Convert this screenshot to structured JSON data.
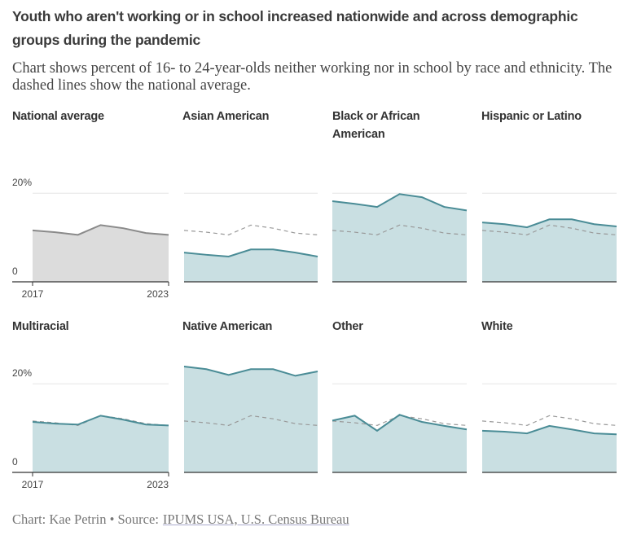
{
  "header": {
    "title": "Youth who aren't working or in school increased nationwide and across demographic groups during the pandemic",
    "subtitle": "Chart shows percent of 16- to 24-year-olds neither working nor in school by race and ethnicity. The dashed lines show the national average."
  },
  "chart_data": [
    {
      "type": "area",
      "title": "National average",
      "x": [
        2017,
        2018,
        2019,
        2020,
        2021,
        2022,
        2023
      ],
      "values": [
        11.6,
        11.2,
        10.6,
        12.8,
        12.1,
        11.0,
        10.6
      ],
      "color": "#8a8a8a",
      "fill": "#dcdcdc",
      "xlim": [
        2017,
        2023
      ],
      "xticks": [
        2017,
        2023
      ],
      "ylim": [
        0,
        25
      ],
      "yticks": [
        0,
        {
          "value": 20,
          "label": "20%"
        }
      ]
    },
    {
      "type": "area",
      "title": "Asian American",
      "x": [
        2017,
        2018,
        2019,
        2020,
        2021,
        2022,
        2023
      ],
      "values": [
        6.6,
        6.1,
        5.7,
        7.3,
        7.3,
        6.6,
        5.7
      ],
      "color": "#4a8c96",
      "fill": "#c9dfe2",
      "xlim": [
        2017,
        2023
      ],
      "ylim": [
        0,
        25
      ]
    },
    {
      "type": "area",
      "title": "Black or African American",
      "x": [
        2017,
        2018,
        2019,
        2020,
        2021,
        2022,
        2023
      ],
      "values": [
        18.2,
        17.6,
        16.9,
        19.8,
        19.1,
        16.9,
        16.1
      ],
      "color": "#4a8c96",
      "fill": "#c9dfe2",
      "xlim": [
        2017,
        2023
      ],
      "ylim": [
        0,
        25
      ]
    },
    {
      "type": "area",
      "title": "Hispanic or Latino",
      "x": [
        2017,
        2018,
        2019,
        2020,
        2021,
        2022,
        2023
      ],
      "values": [
        13.4,
        13.0,
        12.3,
        14.1,
        14.1,
        13.0,
        12.5
      ],
      "color": "#4a8c96",
      "fill": "#c9dfe2",
      "xlim": [
        2017,
        2023
      ],
      "ylim": [
        0,
        25
      ]
    },
    {
      "type": "area",
      "title": "Multiracial",
      "x": [
        2017,
        2018,
        2019,
        2020,
        2021,
        2022,
        2023
      ],
      "values": [
        11.4,
        11.0,
        10.8,
        12.8,
        11.9,
        10.8,
        10.6
      ],
      "color": "#4a8c96",
      "fill": "#c9dfe2",
      "xlim": [
        2017,
        2023
      ],
      "xticks": [
        2017,
        2023
      ],
      "ylim": [
        0,
        25
      ],
      "yticks": [
        0,
        {
          "value": 20,
          "label": "20%"
        }
      ]
    },
    {
      "type": "area",
      "title": "Native American",
      "x": [
        2017,
        2018,
        2019,
        2020,
        2021,
        2022,
        2023
      ],
      "values": [
        23.9,
        23.3,
        22.0,
        23.3,
        23.3,
        21.8,
        22.8
      ],
      "color": "#4a8c96",
      "fill": "#c9dfe2",
      "xlim": [
        2017,
        2023
      ],
      "ylim": [
        0,
        25
      ]
    },
    {
      "type": "area",
      "title": "Other",
      "x": [
        2017,
        2018,
        2019,
        2020,
        2021,
        2022,
        2023
      ],
      "values": [
        11.7,
        12.8,
        9.4,
        13.0,
        11.4,
        10.5,
        9.7
      ],
      "color": "#4a8c96",
      "fill": "#c9dfe2",
      "xlim": [
        2017,
        2023
      ],
      "ylim": [
        0,
        25
      ]
    },
    {
      "type": "area",
      "title": "White",
      "x": [
        2017,
        2018,
        2019,
        2020,
        2021,
        2022,
        2023
      ],
      "values": [
        9.4,
        9.2,
        8.8,
        10.5,
        9.7,
        8.8,
        8.6
      ],
      "color": "#4a8c96",
      "fill": "#c9dfe2",
      "xlim": [
        2017,
        2023
      ],
      "ylim": [
        0,
        25
      ]
    }
  ],
  "footer": {
    "credit": "Chart: Kae Petrin • Source:",
    "source": "IPUMS USA, U.S. Census Bureau"
  }
}
